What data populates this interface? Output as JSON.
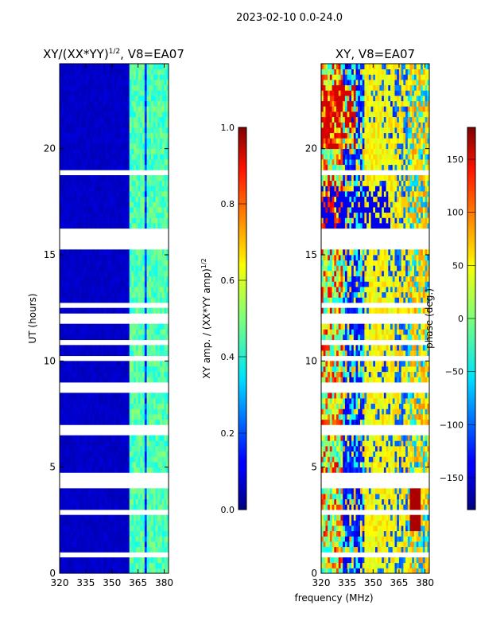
{
  "figure": {
    "suptitle": "2023-02-10 0.0-24.0",
    "shared_xlabel": "frequency (MHz)"
  },
  "chart_data": [
    {
      "type": "heatmap",
      "title": "XY/(XX*YY)",
      "title_exponent": "1/2",
      "title_suffix": ", V8=EA07",
      "xlabel": "",
      "ylabel": "UT (hours)",
      "xlim": [
        320,
        382.5
      ],
      "ylim": [
        0,
        24
      ],
      "xticks": [
        320,
        335,
        350,
        365,
        380
      ],
      "yticks": [
        0,
        5,
        10,
        15,
        20
      ],
      "colormap": "jet",
      "colorbar": {
        "label": "XY amp. / (XX*YY amp)",
        "label_exponent": "1/2",
        "range": [
          0.0,
          1.0
        ],
        "ticks": [
          "0.0",
          "0.2",
          "0.4",
          "0.6",
          "0.8",
          "1.0"
        ]
      },
      "description": "Normalized XY amplitude vs frequency and UT; low (~0.05) below 361 MHz, 0.2-0.5 in vertical stripes 361-382 MHz; white gaps are flagged data.",
      "bright_channels_mhz": [
        361,
        364,
        366,
        368,
        371,
        374,
        376,
        379,
        381
      ],
      "flagged_hours": [
        [
          4.3,
          4.6
        ],
        [
          8.6,
          8.9
        ],
        [
          15.3,
          15.6
        ]
      ]
    },
    {
      "type": "heatmap",
      "title": "XY",
      "title_suffix": ", V8=EA07",
      "xlabel": "frequency (MHz)",
      "ylabel": "",
      "xlim": [
        320,
        382.5
      ],
      "ylim": [
        0,
        24
      ],
      "xticks": [
        320,
        335,
        350,
        365,
        380
      ],
      "yticks": [
        0,
        5,
        10,
        15,
        20
      ],
      "colormap": "jet",
      "colorbar": {
        "label": "phase (deg.)",
        "range": [
          -180,
          180
        ],
        "ticks": [
          "−150",
          "−100",
          "−50",
          "0",
          "50",
          "100",
          "150"
        ]
      },
      "description": "XY phase vs frequency and UT; mostly yellow/orange (~+30 to +60 deg) at 350-365 MHz, blue (~-120 deg) bands near 333-345 MHz, red patches near 372 MHz at 2-4 h.",
      "flagged_hours": [
        [
          4.3,
          4.6
        ],
        [
          8.6,
          8.9
        ],
        [
          15.3,
          15.6
        ]
      ]
    }
  ]
}
